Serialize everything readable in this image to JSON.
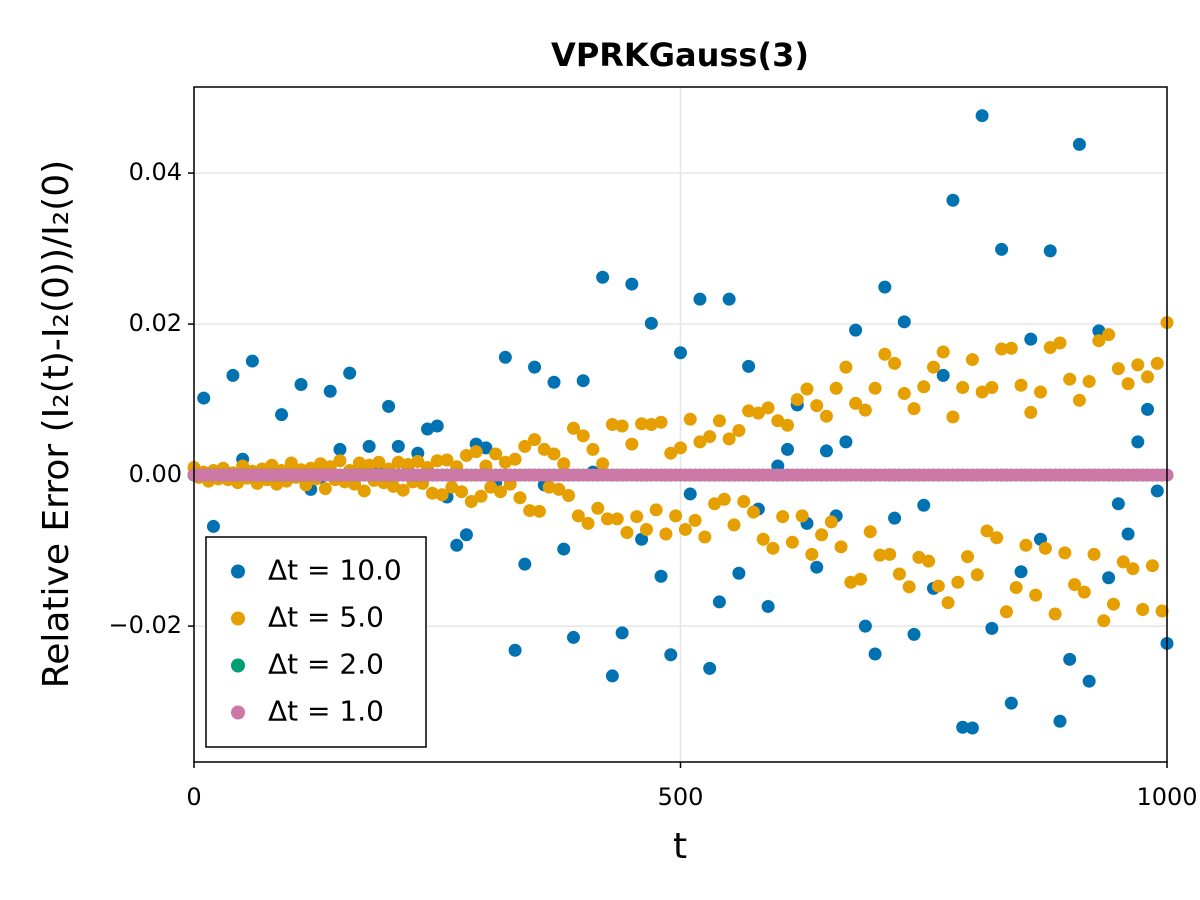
{
  "chart_data": {
    "type": "scatter",
    "title": "VPRKGauss(3)",
    "x_label": "t",
    "y_label": "Relative Error (I₂(t)-I₂(0))/I₂(0)",
    "x": [
      0,
      5,
      10,
      15,
      20,
      25,
      30,
      35,
      40,
      45,
      50,
      55,
      60,
      65,
      70,
      75,
      80,
      85,
      90,
      95,
      100,
      105,
      110,
      115,
      120,
      125,
      130,
      135,
      140,
      145,
      150,
      155,
      160,
      165,
      170,
      175,
      180,
      185,
      190,
      195,
      200,
      205,
      210,
      215,
      220,
      225,
      230,
      235,
      240,
      245,
      250,
      255,
      260,
      265,
      270,
      275,
      280,
      285,
      290,
      295,
      300,
      305,
      310,
      315,
      320,
      325,
      330,
      335,
      340,
      345,
      350,
      355,
      360,
      365,
      370,
      375,
      380,
      385,
      390,
      395,
      400,
      405,
      410,
      415,
      420,
      425,
      430,
      435,
      440,
      445,
      450,
      455,
      460,
      465,
      470,
      475,
      480,
      485,
      490,
      495,
      500,
      505,
      510,
      515,
      520,
      525,
      530,
      535,
      540,
      545,
      550,
      555,
      560,
      565,
      570,
      575,
      580,
      585,
      590,
      595,
      600,
      605,
      610,
      615,
      620,
      625,
      630,
      635,
      640,
      645,
      650,
      655,
      660,
      665,
      670,
      675,
      680,
      685,
      690,
      695,
      700,
      705,
      710,
      715,
      720,
      725,
      730,
      735,
      740,
      745,
      750,
      755,
      760,
      765,
      770,
      775,
      780,
      785,
      790,
      795,
      800,
      805,
      810,
      815,
      820,
      825,
      830,
      835,
      840,
      845,
      850,
      855,
      860,
      865,
      870,
      875,
      880,
      885,
      890,
      895,
      900,
      905,
      910,
      915,
      920,
      925,
      930,
      935,
      940,
      945,
      950,
      955,
      960,
      965,
      970,
      975,
      980,
      985,
      990,
      995,
      1000
    ],
    "series": [
      {
        "name": "Δt = 10.0",
        "color": "#0072b2",
        "values": [
          0,
          null,
          0.0102,
          null,
          -0.0068,
          null,
          0.0005,
          null,
          0.0132,
          null,
          0.0021,
          null,
          0.0151,
          null,
          0.0005,
          null,
          0.0003,
          null,
          0.008,
          null,
          0.0005,
          null,
          0.012,
          null,
          -0.0019,
          null,
          -0.0003,
          null,
          0.0111,
          null,
          0.0034,
          null,
          0.0135,
          null,
          0.0006,
          null,
          0.0038,
          null,
          0.0008,
          null,
          0.0091,
          null,
          0.0038,
          null,
          0.0006,
          null,
          0.0029,
          null,
          0.0061,
          null,
          0.0065,
          null,
          -0.0029,
          null,
          -0.0093,
          null,
          -0.0079,
          null,
          0.0041,
          null,
          0.0036,
          null,
          -0.001,
          null,
          0.0156,
          null,
          -0.0232,
          null,
          -0.0118,
          null,
          0.0143,
          null,
          -0.0013,
          null,
          0.0123,
          null,
          -0.0098,
          null,
          -0.0215,
          null,
          0.0125,
          null,
          0.0004,
          null,
          0.0262,
          null,
          -0.0266,
          null,
          -0.0209,
          null,
          0.0253,
          null,
          -0.0085,
          null,
          0.0201,
          null,
          -0.0134,
          null,
          -0.0238,
          null,
          0.0162,
          null,
          -0.0025,
          null,
          0.0233,
          null,
          -0.0256,
          null,
          -0.0168,
          null,
          0.0233,
          null,
          -0.013,
          null,
          0.0144,
          null,
          -0.0045,
          null,
          -0.0174,
          null,
          0.0012,
          null,
          0.0034,
          null,
          0.0093,
          null,
          -0.0064,
          null,
          -0.0122,
          null,
          0.0032,
          null,
          -0.0054,
          null,
          0.0044,
          null,
          0.0192,
          null,
          -0.02,
          null,
          -0.0237,
          null,
          0.0249,
          null,
          -0.0057,
          null,
          0.0203,
          null,
          -0.0211,
          null,
          -0.004,
          null,
          -0.015,
          null,
          0.0132,
          null,
          0.0364,
          null,
          -0.0334,
          null,
          -0.0335,
          null,
          0.0476,
          null,
          -0.0203,
          null,
          0.0299,
          null,
          -0.0302,
          null,
          -0.0128,
          null,
          0.018,
          null,
          -0.0085,
          null,
          0.0297,
          null,
          -0.0326,
          null,
          -0.0244,
          null,
          0.0438,
          null,
          -0.0273,
          null,
          0.0191,
          null,
          -0.0136,
          null,
          -0.0038,
          null,
          -0.0078,
          null,
          0.0044,
          null,
          0.0087,
          null,
          -0.0021,
          null,
          -0.0223
        ]
      },
      {
        "name": "Δt = 5.0",
        "color": "#e69f00",
        "values": [
          0.001,
          -0.0003,
          0.0004,
          -0.0008,
          0.0006,
          -0.0005,
          0.0009,
          -0.0006,
          0.0003,
          -0.001,
          0.0012,
          -0.0004,
          0.0005,
          -0.0011,
          0.0008,
          -0.0006,
          0.0013,
          -0.0012,
          0.0006,
          -0.0008,
          0.0016,
          -0.0003,
          0.0007,
          -0.0013,
          0.0009,
          -0.0005,
          0.0015,
          -0.0018,
          0.0011,
          -0.0006,
          0.0019,
          -0.0009,
          0.0006,
          -0.0012,
          0.0016,
          -0.0021,
          0.0013,
          -0.0007,
          0.0017,
          -0.001,
          0.0008,
          -0.0015,
          0.0017,
          -0.002,
          0.0014,
          -0.0009,
          0.0018,
          -0.0011,
          0.001,
          -0.0024,
          0.0019,
          -0.0026,
          0.002,
          -0.0016,
          0.0011,
          -0.0022,
          0.0026,
          -0.0035,
          0.0031,
          -0.0028,
          0.0012,
          -0.0016,
          0.0028,
          -0.0022,
          0.0017,
          -0.0012,
          0.0021,
          -0.003,
          0.0038,
          -0.0047,
          0.0047,
          -0.0048,
          0.0034,
          -0.0016,
          0.0028,
          -0.0019,
          0.0015,
          -0.0027,
          0.0062,
          -0.0054,
          0.0052,
          -0.0064,
          0.0034,
          -0.0044,
          0.0015,
          -0.0058,
          0.0067,
          -0.0058,
          0.0065,
          -0.0076,
          0.0041,
          -0.0055,
          0.0068,
          -0.0072,
          0.0067,
          -0.0046,
          0.007,
          -0.0078,
          0.0029,
          -0.0054,
          0.0036,
          -0.0072,
          0.0074,
          -0.006,
          0.0044,
          -0.0082,
          0.0051,
          -0.0038,
          0.0072,
          -0.0032,
          0.0048,
          -0.0066,
          0.0059,
          -0.0035,
          0.0085,
          -0.0049,
          0.0082,
          -0.0085,
          0.0089,
          -0.0097,
          0.0072,
          -0.0055,
          0.0066,
          -0.0089,
          0.01,
          -0.0054,
          0.0114,
          -0.0105,
          0.0092,
          -0.0079,
          0.0078,
          -0.0062,
          0.0115,
          -0.0095,
          0.0143,
          -0.0142,
          0.0095,
          -0.0138,
          0.0086,
          -0.0075,
          0.0115,
          -0.0106,
          0.016,
          -0.0105,
          0.0148,
          -0.0131,
          0.0108,
          -0.0148,
          0.0088,
          -0.0109,
          0.0117,
          -0.0114,
          0.0143,
          -0.0147,
          0.0163,
          -0.0169,
          0.0077,
          -0.0142,
          0.0116,
          -0.0108,
          0.0153,
          -0.0132,
          0.011,
          -0.0074,
          0.0116,
          -0.0083,
          0.0167,
          -0.0181,
          0.0168,
          -0.0149,
          0.0119,
          -0.0093,
          0.0083,
          -0.0159,
          0.011,
          -0.0097,
          0.0169,
          -0.0184,
          0.0175,
          -0.0103,
          0.0127,
          -0.0145,
          0.0099,
          -0.0155,
          0.0124,
          -0.0105,
          0.0178,
          -0.0193,
          0.0186,
          -0.0171,
          0.0141,
          -0.0115,
          0.0121,
          -0.0124,
          0.0146,
          -0.0178,
          0.013,
          -0.012,
          0.0148,
          -0.018,
          0.0202
        ]
      },
      {
        "name": "Δt = 2.0",
        "color": "#009e73",
        "values": [
          0,
          0,
          0,
          0,
          0,
          0,
          0,
          0,
          0,
          0,
          0,
          0,
          0,
          0,
          0,
          0,
          0,
          0,
          0,
          0,
          0,
          0,
          0,
          0,
          0,
          0,
          0,
          0,
          0,
          0,
          0,
          0,
          0,
          0,
          0,
          0,
          0,
          0,
          0,
          0,
          0,
          0,
          0,
          0,
          0,
          0,
          0,
          0,
          0,
          0,
          0,
          0,
          0,
          0,
          0,
          0,
          0,
          0,
          0,
          0,
          0,
          0,
          0,
          0,
          0,
          0,
          0,
          0,
          0,
          0,
          0,
          0,
          0,
          0,
          0,
          0,
          0,
          0,
          0,
          0,
          0,
          0,
          0,
          0,
          0,
          0,
          0,
          0,
          0,
          0,
          0,
          0,
          0,
          0,
          0,
          0,
          0,
          0,
          0,
          0,
          0,
          0,
          0,
          0,
          0,
          0,
          0,
          0,
          0,
          0,
          0,
          0,
          0,
          0,
          0,
          0,
          0,
          0,
          0,
          0,
          0,
          0,
          0,
          0,
          0,
          0,
          0,
          0,
          0,
          0,
          0,
          0,
          0,
          0,
          0,
          0,
          0,
          0,
          0,
          0,
          0,
          0,
          0,
          0,
          0,
          0,
          0,
          0,
          0,
          0,
          0,
          0,
          0,
          0,
          0,
          0,
          0,
          0,
          0,
          0,
          0,
          0,
          0,
          0,
          0,
          0,
          0,
          0,
          0,
          0,
          0,
          0,
          0,
          0,
          0,
          0,
          0,
          0,
          0,
          0,
          0,
          0,
          0,
          0,
          0,
          0,
          0,
          0,
          0,
          0,
          0,
          0,
          0,
          0,
          0,
          0,
          0,
          0,
          0,
          0,
          0
        ]
      },
      {
        "name": "Δt = 1.0",
        "color": "#cc79a7",
        "values": [
          0,
          0,
          0,
          0,
          0,
          0,
          0,
          0,
          0,
          0,
          0,
          0,
          0,
          0,
          0,
          0,
          0,
          0,
          0,
          0,
          0,
          0,
          0,
          0,
          0,
          0,
          0,
          0,
          0,
          0,
          0,
          0,
          0,
          0,
          0,
          0,
          0,
          0,
          0,
          0,
          0,
          0,
          0,
          0,
          0,
          0,
          0,
          0,
          0,
          0,
          0,
          0,
          0,
          0,
          0,
          0,
          0,
          0,
          0,
          0,
          0,
          0,
          0,
          0,
          0,
          0,
          0,
          0,
          0,
          0,
          0,
          0,
          0,
          0,
          0,
          0,
          0,
          0,
          0,
          0,
          0,
          0,
          0,
          0,
          0,
          0,
          0,
          0,
          0,
          0,
          0,
          0,
          0,
          0,
          0,
          0,
          0,
          0,
          0,
          0,
          0,
          0,
          0,
          0,
          0,
          0,
          0,
          0,
          0,
          0,
          0,
          0,
          0,
          0,
          0,
          0,
          0,
          0,
          0,
          0,
          0,
          0,
          0,
          0,
          0,
          0,
          0,
          0,
          0,
          0,
          0,
          0,
          0,
          0,
          0,
          0,
          0,
          0,
          0,
          0,
          0,
          0,
          0,
          0,
          0,
          0,
          0,
          0,
          0,
          0,
          0,
          0,
          0,
          0,
          0,
          0,
          0,
          0,
          0,
          0,
          0,
          0,
          0,
          0,
          0,
          0,
          0,
          0,
          0,
          0,
          0,
          0,
          0,
          0,
          0,
          0,
          0,
          0,
          0,
          0,
          0,
          0,
          0,
          0,
          0,
          0,
          0,
          0,
          0,
          0,
          0,
          0,
          0,
          0,
          0,
          0,
          0,
          0,
          0,
          0,
          0
        ]
      }
    ],
    "xlim": [
      0,
      1000
    ],
    "xticks": [
      0,
      500,
      1000
    ],
    "ylim": [
      -0.038,
      0.0514
    ],
    "yticks": [
      {
        "value": -0.02,
        "label": "−0.02"
      },
      {
        "value": 0,
        "label": "0.00"
      },
      0.02,
      0.04
    ],
    "grid": true,
    "legend": "lower left"
  }
}
